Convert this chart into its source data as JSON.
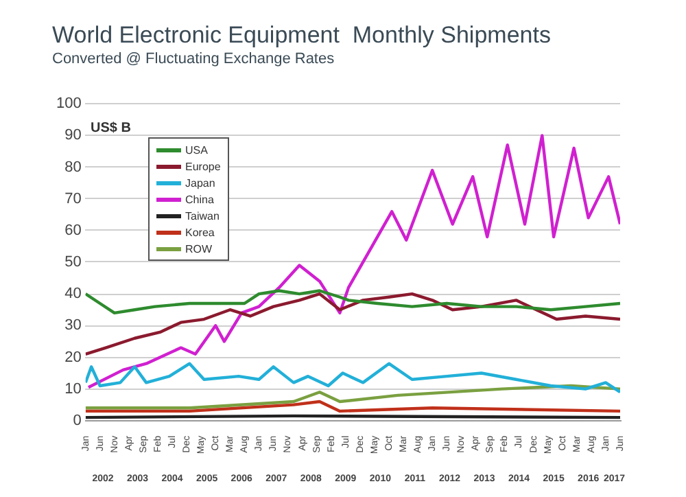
{
  "chart_data": {
    "type": "line",
    "title": "World Electronic Equipment  Monthly Shipments",
    "subtitle": "Converted @ Fluctuating Exchange Rates",
    "ylabel": "US$ B",
    "xlim": [
      "2002-01",
      "2017-06"
    ],
    "xticks": [
      {
        "value": "2002-01",
        "label": "Jan"
      },
      {
        "value": "2002-06",
        "label": "Jun"
      },
      {
        "value": "2002-11",
        "label": "Nov"
      },
      {
        "value": "2003-04",
        "label": "Apr"
      },
      {
        "value": "2003-09",
        "label": "Sep"
      },
      {
        "value": "2004-02",
        "label": "Feb"
      },
      {
        "value": "2004-07",
        "label": "Jul"
      },
      {
        "value": "2004-12",
        "label": "Dec"
      },
      {
        "value": "2005-05",
        "label": "May"
      },
      {
        "value": "2005-10",
        "label": "Oct"
      },
      {
        "value": "2006-03",
        "label": "Mar"
      },
      {
        "value": "2006-08",
        "label": "Aug"
      },
      {
        "value": "2007-01",
        "label": "Jan"
      },
      {
        "value": "2007-06",
        "label": "Jun"
      },
      {
        "value": "2007-11",
        "label": "Nov"
      },
      {
        "value": "2008-04",
        "label": "Apr"
      },
      {
        "value": "2008-09",
        "label": "Sep"
      },
      {
        "value": "2009-02",
        "label": "Feb"
      },
      {
        "value": "2009-07",
        "label": "Jul"
      },
      {
        "value": "2009-12",
        "label": "Dec"
      },
      {
        "value": "2010-05",
        "label": "May"
      },
      {
        "value": "2010-10",
        "label": "Oct"
      },
      {
        "value": "2011-03",
        "label": "Mar"
      },
      {
        "value": "2011-08",
        "label": "Aug"
      },
      {
        "value": "2012-01",
        "label": "Jan"
      },
      {
        "value": "2012-06",
        "label": "Jun"
      },
      {
        "value": "2012-11",
        "label": "Nov"
      },
      {
        "value": "2013-04",
        "label": "Apr"
      },
      {
        "value": "2013-09",
        "label": "Sep"
      },
      {
        "value": "2014-02",
        "label": "Feb"
      },
      {
        "value": "2014-07",
        "label": "Jul"
      },
      {
        "value": "2014-12",
        "label": "Dec"
      },
      {
        "value": "2015-05",
        "label": "May"
      },
      {
        "value": "2015-10",
        "label": "Oct"
      },
      {
        "value": "2016-03",
        "label": "Mar"
      },
      {
        "value": "2016-08",
        "label": "Aug"
      },
      {
        "value": "2017-01",
        "label": "Jan"
      },
      {
        "value": "2017-06",
        "label": "Jun"
      }
    ],
    "x2lim": [
      "2002-01",
      "2017-06"
    ],
    "x2ticks": [
      {
        "value": "2002-07",
        "label": "2002"
      },
      {
        "value": "2003-07",
        "label": "2003"
      },
      {
        "value": "2004-07",
        "label": "2004"
      },
      {
        "value": "2005-07",
        "label": "2005"
      },
      {
        "value": "2006-07",
        "label": "2006"
      },
      {
        "value": "2007-07",
        "label": "2007"
      },
      {
        "value": "2008-07",
        "label": "2008"
      },
      {
        "value": "2009-07",
        "label": "2009"
      },
      {
        "value": "2010-07",
        "label": "2010"
      },
      {
        "value": "2011-07",
        "label": "2011"
      },
      {
        "value": "2012-07",
        "label": "2012"
      },
      {
        "value": "2013-07",
        "label": "2013"
      },
      {
        "value": "2014-07",
        "label": "2014"
      },
      {
        "value": "2015-07",
        "label": "2015"
      },
      {
        "value": "2016-07",
        "label": "2016"
      },
      {
        "value": "2017-04",
        "label": "2017"
      }
    ],
    "ylim": [
      0,
      100
    ],
    "yticks": [
      0,
      10,
      20,
      30,
      40,
      50,
      60,
      70,
      80,
      90,
      100
    ],
    "grid": "y",
    "legend": "top left",
    "marker": "none",
    "line_style": "solid",
    "series": [
      {
        "name": "USA",
        "color": "#2e8b2e",
        "x": [
          "2002-01",
          "2002-06",
          "2002-11",
          "2003-06",
          "2004-01",
          "2005-01",
          "2006-01",
          "2006-08",
          "2007-01",
          "2007-08",
          "2008-03",
          "2008-10",
          "2009-05",
          "2009-08",
          "2010-06",
          "2011-06",
          "2012-06",
          "2013-06",
          "2014-06",
          "2015-06",
          "2016-06",
          "2017-06"
        ],
        "values": [
          40,
          37,
          34,
          35,
          36,
          37,
          37,
          37,
          40,
          41,
          40,
          41,
          39,
          38,
          37,
          36,
          37,
          36,
          36,
          35,
          36,
          37
        ]
      },
      {
        "name": "Europe",
        "color": "#8b1a2e",
        "x": [
          "2002-01",
          "2002-08",
          "2003-06",
          "2004-03",
          "2004-10",
          "2005-06",
          "2006-03",
          "2006-10",
          "2007-06",
          "2008-03",
          "2008-10",
          "2009-05",
          "2010-01",
          "2010-10",
          "2011-06",
          "2012-01",
          "2012-08",
          "2013-06",
          "2014-06",
          "2015-01",
          "2015-08",
          "2016-06",
          "2017-06"
        ],
        "values": [
          21,
          23,
          26,
          28,
          31,
          32,
          35,
          33,
          36,
          38,
          40,
          35,
          38,
          39,
          40,
          38,
          35,
          36,
          38,
          35,
          32,
          33,
          32
        ]
      },
      {
        "name": "Japan",
        "color": "#22b0d8",
        "x": [
          "2002-01",
          "2002-03",
          "2002-06",
          "2003-01",
          "2003-06",
          "2003-10",
          "2004-06",
          "2005-01",
          "2005-06",
          "2006-06",
          "2007-01",
          "2007-06",
          "2008-01",
          "2008-06",
          "2009-01",
          "2009-06",
          "2010-01",
          "2010-10",
          "2011-06",
          "2012-06",
          "2013-06",
          "2014-06",
          "2015-06",
          "2016-06",
          "2017-01",
          "2017-06"
        ],
        "values": [
          12,
          17,
          11,
          12,
          17,
          12,
          14,
          18,
          13,
          14,
          13,
          17,
          12,
          14,
          11,
          15,
          12,
          18,
          13,
          14,
          15,
          13,
          11,
          10,
          12,
          9
        ]
      },
      {
        "name": "China",
        "color": "#d020d0",
        "x": [
          "2002-02",
          "2003-02",
          "2003-10",
          "2004-10",
          "2005-03",
          "2005-10",
          "2006-01",
          "2006-07",
          "2007-01",
          "2007-08",
          "2008-03",
          "2008-10",
          "2009-05",
          "2009-08",
          "2010-11",
          "2011-04",
          "2012-01",
          "2012-08",
          "2013-03",
          "2013-08",
          "2014-03",
          "2014-09",
          "2015-03",
          "2015-07",
          "2016-02",
          "2016-07",
          "2017-02",
          "2017-06"
        ],
        "values": [
          10.5,
          16,
          18,
          23,
          21,
          30,
          25,
          34,
          36,
          42,
          49,
          44,
          34,
          42,
          66,
          57,
          79,
          62,
          77,
          58,
          87,
          62,
          90,
          58,
          86,
          64,
          77,
          62
        ]
      },
      {
        "name": "Taiwan",
        "color": "#222222",
        "x": [
          "2002-01",
          "2008-01",
          "2017-06"
        ],
        "values": [
          1,
          1.5,
          1
        ]
      },
      {
        "name": "Korea",
        "color": "#c0301a",
        "x": [
          "2002-01",
          "2005-01",
          "2008-01",
          "2008-10",
          "2009-05",
          "2012-01",
          "2017-06"
        ],
        "values": [
          3,
          3,
          5,
          6,
          3,
          4,
          3
        ]
      },
      {
        "name": "ROW",
        "color": "#7aa040",
        "x": [
          "2002-01",
          "2005-01",
          "2008-01",
          "2008-10",
          "2009-05",
          "2011-01",
          "2014-01",
          "2016-01",
          "2017-06"
        ],
        "values": [
          4,
          4,
          6,
          9,
          6,
          8,
          10,
          11,
          10
        ]
      }
    ]
  }
}
